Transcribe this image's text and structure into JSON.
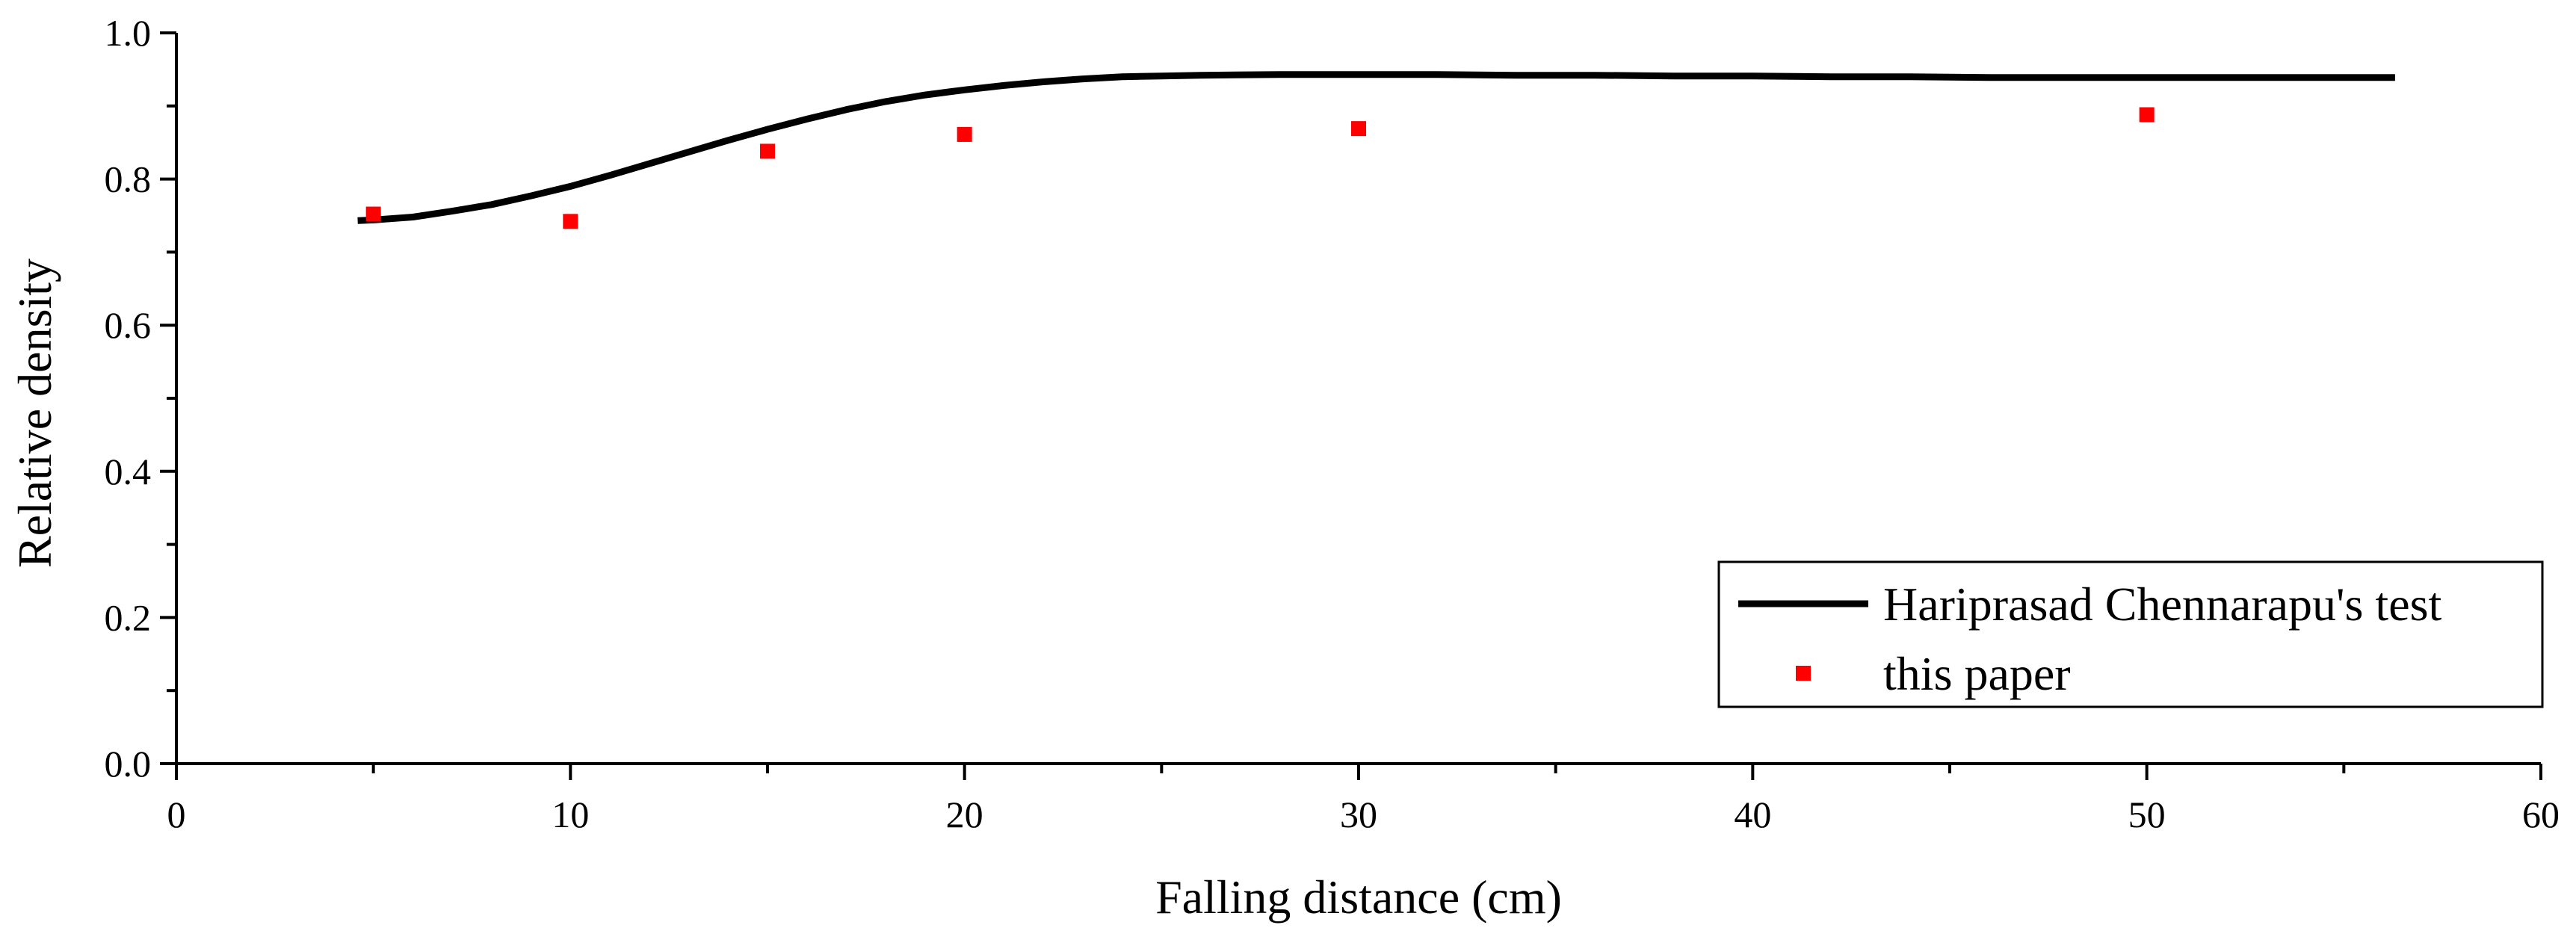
{
  "chart_data": {
    "type": "line",
    "title": "",
    "xlabel": "Falling distance (cm)",
    "ylabel": "Relative density",
    "xlim": [
      0,
      60
    ],
    "ylim": [
      0.0,
      1.0
    ],
    "x_ticks": [
      "0",
      "10",
      "20",
      "30",
      "40",
      "50",
      "60"
    ],
    "y_ticks": [
      "0.0",
      "0.2",
      "0.4",
      "0.6",
      "0.8",
      "1.0"
    ],
    "grid": false,
    "legend_position": "bottom-right",
    "series": [
      {
        "name": "Hariprasad Chennarapu's test",
        "type": "line",
        "color": "#000000",
        "x": [
          4.6,
          5,
          6,
          7,
          8,
          9,
          10,
          11,
          12,
          13,
          14,
          15,
          16,
          17,
          18,
          19,
          20,
          21,
          22,
          23,
          24,
          25,
          26,
          28,
          30,
          32,
          34,
          36,
          38,
          40,
          42,
          44,
          46,
          48,
          50,
          52,
          54,
          56.3
        ],
        "y": [
          0.743,
          0.744,
          0.748,
          0.756,
          0.765,
          0.777,
          0.79,
          0.805,
          0.821,
          0.837,
          0.853,
          0.868,
          0.882,
          0.895,
          0.906,
          0.915,
          0.922,
          0.928,
          0.933,
          0.937,
          0.94,
          0.941,
          0.942,
          0.943,
          0.943,
          0.943,
          0.942,
          0.942,
          0.941,
          0.941,
          0.94,
          0.94,
          0.939,
          0.939,
          0.939,
          0.939,
          0.939,
          0.939
        ]
      },
      {
        "name": "this paper",
        "type": "scatter",
        "color": "#ff0000",
        "x": [
          5,
          10,
          15,
          20,
          30,
          50
        ],
        "y": [
          0.752,
          0.742,
          0.838,
          0.861,
          0.869,
          0.888
        ]
      }
    ]
  }
}
